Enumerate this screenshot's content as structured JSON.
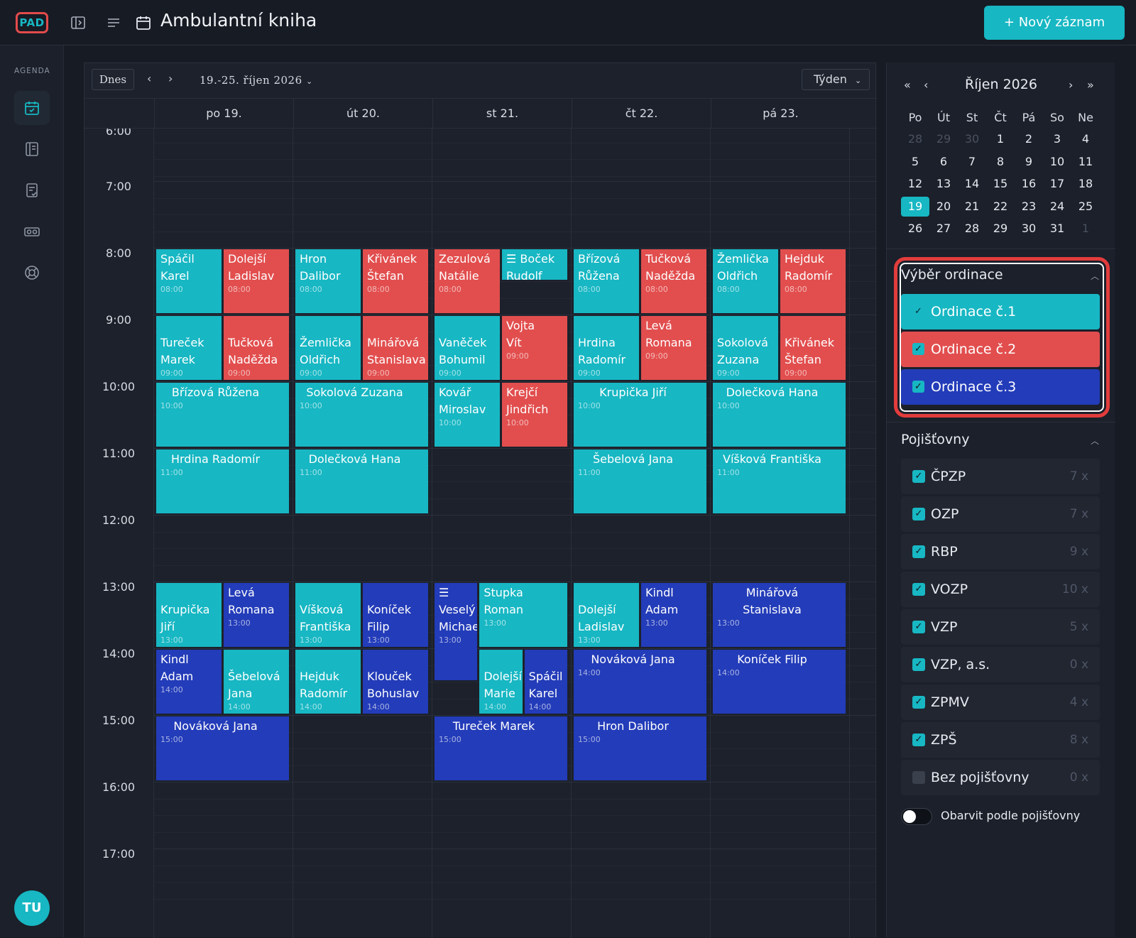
{
  "app": {
    "logo": "PAD",
    "title": "Ambulantní kniha",
    "new_record": "+ Nový záznam"
  },
  "sidebar": {
    "section_label": "AGENDA",
    "avatar": "TU"
  },
  "toolbar": {
    "today": "Dnes",
    "prev": "‹",
    "next": "›",
    "range": "19.-25. říjen 2026",
    "view": "Týden"
  },
  "days": [
    "po 19.",
    "út 20.",
    "st 21.",
    "čt 22.",
    "pá 23."
  ],
  "times": [
    "6:00",
    "7:00",
    "8:00",
    "9:00",
    "10:00",
    "11:00",
    "12:00",
    "13:00",
    "14:00",
    "15:00",
    "16:00",
    "17:00"
  ],
  "events": [
    {
      "day": 0,
      "col": 0,
      "cols": 2,
      "start": 8,
      "dur": 1,
      "cls": "c1",
      "name": "Spáčil\nKarel",
      "time": "08:00",
      "align": "split"
    },
    {
      "day": 0,
      "col": 1,
      "cols": 2,
      "start": 8,
      "dur": 1,
      "cls": "c2",
      "name": "Dolejší\nLadislav",
      "time": "08:00"
    },
    {
      "day": 1,
      "col": 0,
      "cols": 2,
      "start": 8,
      "dur": 1,
      "cls": "c1",
      "name": "Hron\nDalibor",
      "time": "08:00",
      "align": "split"
    },
    {
      "day": 1,
      "col": 1,
      "cols": 2,
      "start": 8,
      "dur": 1,
      "cls": "c2",
      "name": "Křivánek\nŠtefan",
      "time": "08:00"
    },
    {
      "day": 2,
      "col": 0,
      "cols": 2,
      "start": 8,
      "dur": 1,
      "cls": "c2",
      "name": "Zezulová\nNatálie",
      "time": "08:00"
    },
    {
      "day": 2,
      "col": 1,
      "cols": 2,
      "start": 8,
      "dur": 0.5,
      "cls": "c1",
      "name": "☰ Boček\nRudolf",
      "time": "",
      "align": "split"
    },
    {
      "day": 3,
      "col": 0,
      "cols": 2,
      "start": 8,
      "dur": 1,
      "cls": "c1",
      "name": "Břízová\nRůžena",
      "time": "08:00"
    },
    {
      "day": 3,
      "col": 1,
      "cols": 2,
      "start": 8,
      "dur": 1,
      "cls": "c2",
      "name": "Tučková\nNaděžda",
      "time": "08:00"
    },
    {
      "day": 4,
      "col": 0,
      "cols": 2,
      "start": 8,
      "dur": 1,
      "cls": "c1",
      "name": "Žemlička\nOldřich",
      "time": "08:00"
    },
    {
      "day": 4,
      "col": 1,
      "cols": 2,
      "start": 8,
      "dur": 1,
      "cls": "c2",
      "name": "Hejduk\nRadomír",
      "time": "08:00"
    },
    {
      "day": 0,
      "col": 0,
      "cols": 2,
      "start": 9,
      "dur": 1,
      "cls": "c1",
      "name": "\nTureček\nMarek",
      "time": "09:00"
    },
    {
      "day": 0,
      "col": 1,
      "cols": 2,
      "start": 9,
      "dur": 1,
      "cls": "c2",
      "name": "\nTučková\nNaděžda",
      "time": "09:00"
    },
    {
      "day": 1,
      "col": 0,
      "cols": 2,
      "start": 9,
      "dur": 1,
      "cls": "c1",
      "name": "\nŽemlička\nOldřich",
      "time": "09:00"
    },
    {
      "day": 1,
      "col": 1,
      "cols": 2,
      "start": 9,
      "dur": 1,
      "cls": "c2",
      "name": "\nMinářová\nStanislava",
      "time": "09:00"
    },
    {
      "day": 2,
      "col": 0,
      "cols": 2,
      "start": 9,
      "dur": 1,
      "cls": "c1",
      "name": "\nVaněček\nBohumil",
      "time": "09:00"
    },
    {
      "day": 2,
      "col": 1,
      "cols": 2,
      "start": 9,
      "dur": 1,
      "cls": "c2",
      "name": "Vojta\nVít",
      "time": "09:00",
      "align": "split"
    },
    {
      "day": 3,
      "col": 0,
      "cols": 2,
      "start": 9,
      "dur": 1,
      "cls": "c1",
      "name": "\nHrdina\nRadomír",
      "time": "09:00"
    },
    {
      "day": 3,
      "col": 1,
      "cols": 2,
      "start": 9,
      "dur": 1,
      "cls": "c2",
      "name": "Levá\nRomana",
      "time": "09:00",
      "align": "split"
    },
    {
      "day": 4,
      "col": 0,
      "cols": 2,
      "start": 9,
      "dur": 1,
      "cls": "c1",
      "name": "\nSokolová\nZuzana",
      "time": "09:00"
    },
    {
      "day": 4,
      "col": 1,
      "cols": 2,
      "start": 9,
      "dur": 1,
      "cls": "c2",
      "name": "\nKřivánek\nŠtefan",
      "time": "09:00"
    },
    {
      "day": 0,
      "col": 0,
      "cols": 1,
      "start": 10,
      "dur": 1,
      "cls": "c1",
      "name": "Břízová Růžena",
      "time": "10:00",
      "align": "full"
    },
    {
      "day": 1,
      "col": 0,
      "cols": 1,
      "start": 10,
      "dur": 1,
      "cls": "c1",
      "name": "Sokolová Zuzana",
      "time": "10:00",
      "align": "full"
    },
    {
      "day": 2,
      "col": 0,
      "cols": 2,
      "start": 10,
      "dur": 1,
      "cls": "c1",
      "name": "Kovář\nMiroslav",
      "time": "10:00",
      "align": "split"
    },
    {
      "day": 2,
      "col": 1,
      "cols": 2,
      "start": 10,
      "dur": 1,
      "cls": "c2",
      "name": "Krejčí\nJindřich",
      "time": "10:00",
      "align": "split"
    },
    {
      "day": 3,
      "col": 0,
      "cols": 1,
      "start": 10,
      "dur": 1,
      "cls": "c1",
      "name": "Krupička Jiří",
      "time": "10:00",
      "align": "full"
    },
    {
      "day": 4,
      "col": 0,
      "cols": 1,
      "start": 10,
      "dur": 1,
      "cls": "c1",
      "name": "Dolečková Hana",
      "time": "10:00",
      "align": "full"
    },
    {
      "day": 0,
      "col": 0,
      "cols": 1,
      "start": 11,
      "dur": 1,
      "cls": "c1",
      "name": "Hrdina Radomír",
      "time": "11:00",
      "align": "full"
    },
    {
      "day": 1,
      "col": 0,
      "cols": 1,
      "start": 11,
      "dur": 1,
      "cls": "c1",
      "name": "Dolečková Hana",
      "time": "11:00",
      "align": "full"
    },
    {
      "day": 3,
      "col": 0,
      "cols": 1,
      "start": 11,
      "dur": 1,
      "cls": "c1",
      "name": "Šebelová Jana",
      "time": "11:00",
      "align": "full"
    },
    {
      "day": 4,
      "col": 0,
      "cols": 1,
      "start": 11,
      "dur": 1,
      "cls": "c1",
      "name": "Víšková Františka",
      "time": "11:00",
      "align": "full"
    },
    {
      "day": 0,
      "col": 0,
      "cols": 2,
      "start": 13,
      "dur": 1,
      "cls": "c1",
      "name": "\nKrupička\nJiří",
      "time": "13:00"
    },
    {
      "day": 0,
      "col": 1,
      "cols": 2,
      "start": 13,
      "dur": 1,
      "cls": "c3",
      "name": "Levá\nRomana",
      "time": "13:00",
      "align": "split"
    },
    {
      "day": 1,
      "col": 0,
      "cols": 2,
      "start": 13,
      "dur": 1,
      "cls": "c1",
      "name": "\nVíšková\nFrantiška",
      "time": "13:00"
    },
    {
      "day": 1,
      "col": 1,
      "cols": 2,
      "start": 13,
      "dur": 1,
      "cls": "c3",
      "name": "\nKoníček\nFilip",
      "time": "13:00"
    },
    {
      "day": 2,
      "col": 0,
      "cols": 3,
      "start": 13,
      "dur": 1.5,
      "cls": "c3",
      "name": "☰\nVeselý\nMichae",
      "time": "13:00"
    },
    {
      "day": 2,
      "col": 1,
      "cols": 3,
      "span": 2,
      "start": 13,
      "dur": 1,
      "cls": "c1",
      "name": "Stupka\nRoman",
      "time": "13:00",
      "align": "split"
    },
    {
      "day": 3,
      "col": 0,
      "cols": 2,
      "start": 13,
      "dur": 1,
      "cls": "c1",
      "name": "\nDolejší\nLadislav",
      "time": "13:00"
    },
    {
      "day": 3,
      "col": 1,
      "cols": 2,
      "start": 13,
      "dur": 1,
      "cls": "c3",
      "name": "Kindl\nAdam",
      "time": "13:00",
      "align": "split"
    },
    {
      "day": 4,
      "col": 0,
      "cols": 1,
      "start": 13,
      "dur": 1,
      "cls": "c3",
      "name": "Minářová Stanislava",
      "time": "13:00",
      "align": "full"
    },
    {
      "day": 0,
      "col": 0,
      "cols": 2,
      "start": 14,
      "dur": 1,
      "cls": "c3",
      "name": "Kindl\nAdam",
      "time": "14:00",
      "align": "split"
    },
    {
      "day": 0,
      "col": 1,
      "cols": 2,
      "start": 14,
      "dur": 1,
      "cls": "c1",
      "name": "\nŠebelová\nJana",
      "time": "14:00"
    },
    {
      "day": 1,
      "col": 0,
      "cols": 2,
      "start": 14,
      "dur": 1,
      "cls": "c1",
      "name": "\nHejduk\nRadomír",
      "time": "14:00"
    },
    {
      "day": 1,
      "col": 1,
      "cols": 2,
      "start": 14,
      "dur": 1,
      "cls": "c3",
      "name": "\nKlouček\nBohuslav",
      "time": "14:00"
    },
    {
      "day": 2,
      "col": 1,
      "cols": 3,
      "start": 14,
      "dur": 1,
      "cls": "c1",
      "name": "\nDolejší\nMarie",
      "time": "14:00"
    },
    {
      "day": 2,
      "col": 2,
      "cols": 3,
      "start": 14,
      "dur": 1,
      "cls": "c3",
      "name": "\nSpáčil\nKarel",
      "time": "14:00"
    },
    {
      "day": 3,
      "col": 0,
      "cols": 1,
      "start": 14,
      "dur": 1,
      "cls": "c3",
      "name": "Nováková Jana",
      "time": "14:00",
      "align": "full"
    },
    {
      "day": 4,
      "col": 0,
      "cols": 1,
      "start": 14,
      "dur": 1,
      "cls": "c3",
      "name": "Koníček Filip",
      "time": "14:00",
      "align": "full"
    },
    {
      "day": 0,
      "col": 0,
      "cols": 1,
      "start": 15,
      "dur": 1,
      "cls": "c3",
      "name": "Nováková Jana",
      "time": "15:00",
      "align": "full"
    },
    {
      "day": 2,
      "col": 0,
      "cols": 1,
      "start": 15,
      "dur": 1,
      "cls": "c3",
      "name": "Tureček Marek",
      "time": "15:00",
      "align": "full"
    },
    {
      "day": 3,
      "col": 0,
      "cols": 1,
      "start": 15,
      "dur": 1,
      "cls": "c3",
      "name": "Hron Dalibor",
      "time": "15:00",
      "align": "full"
    }
  ],
  "mini_calendar": {
    "title": "Říjen 2026",
    "nav": {
      "prev_year": "«",
      "prev": "‹",
      "next": "›",
      "next_year": "»"
    },
    "weekdays": [
      "Po",
      "Út",
      "St",
      "Čt",
      "Pá",
      "So",
      "Ne"
    ],
    "weeks": [
      [
        {
          "d": "28",
          "m": true
        },
        {
          "d": "29",
          "m": true
        },
        {
          "d": "30",
          "m": true
        },
        {
          "d": "1"
        },
        {
          "d": "2"
        },
        {
          "d": "3"
        },
        {
          "d": "4"
        }
      ],
      [
        {
          "d": "5"
        },
        {
          "d": "6"
        },
        {
          "d": "7"
        },
        {
          "d": "8"
        },
        {
          "d": "9"
        },
        {
          "d": "10"
        },
        {
          "d": "11"
        }
      ],
      [
        {
          "d": "12"
        },
        {
          "d": "13"
        },
        {
          "d": "14"
        },
        {
          "d": "15"
        },
        {
          "d": "16"
        },
        {
          "d": "17"
        },
        {
          "d": "18"
        }
      ],
      [
        {
          "d": "19",
          "s": true
        },
        {
          "d": "20"
        },
        {
          "d": "21"
        },
        {
          "d": "22"
        },
        {
          "d": "23"
        },
        {
          "d": "24"
        },
        {
          "d": "25"
        }
      ],
      [
        {
          "d": "26"
        },
        {
          "d": "27"
        },
        {
          "d": "28"
        },
        {
          "d": "29"
        },
        {
          "d": "30"
        },
        {
          "d": "31"
        },
        {
          "d": "1",
          "m": true
        }
      ]
    ]
  },
  "ordinace": {
    "title": "Výběr ordinace",
    "items": [
      {
        "label": "Ordinace č.1",
        "color": "#17b7c3"
      },
      {
        "label": "Ordinace č.2",
        "color": "#e24e4e"
      },
      {
        "label": "Ordinace č.3",
        "color": "#233cb9"
      }
    ]
  },
  "pojistovny": {
    "title": "Pojišťovny",
    "items": [
      {
        "label": "ČPZP",
        "count": "7 x",
        "checked": true
      },
      {
        "label": "OZP",
        "count": "7 x",
        "checked": true
      },
      {
        "label": "RBP",
        "count": "9 x",
        "checked": true
      },
      {
        "label": "VOZP",
        "count": "10 x",
        "checked": true
      },
      {
        "label": "VZP",
        "count": "5 x",
        "checked": true
      },
      {
        "label": "VZP, a.s.",
        "count": "0 x",
        "checked": true
      },
      {
        "label": "ZPMV",
        "count": "4 x",
        "checked": true
      },
      {
        "label": "ZPŠ",
        "count": "8 x",
        "checked": true
      },
      {
        "label": "Bez pojišťovny",
        "count": "0 x",
        "checked": false
      }
    ],
    "toggle_label": "Obarvit podle pojišťovny",
    "toggle_on": false
  }
}
